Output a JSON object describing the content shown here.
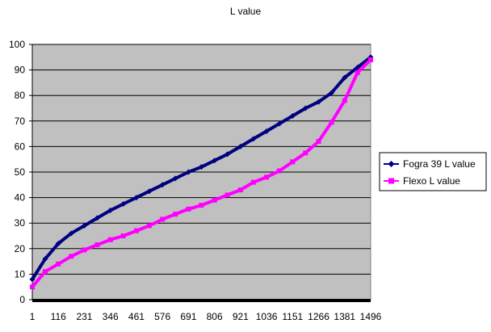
{
  "chart_data": {
    "type": "line",
    "title": "L value",
    "xlabel": "",
    "ylabel": "",
    "x_ticks": [
      "1",
      "116",
      "231",
      "346",
      "461",
      "576",
      "691",
      "806",
      "921",
      "1036",
      "1151",
      "1266",
      "1381",
      "1496"
    ],
    "xlim": [
      1,
      1496
    ],
    "ylim": [
      0,
      100
    ],
    "y_ticks": [
      "0",
      "10",
      "20",
      "30",
      "40",
      "50",
      "60",
      "70",
      "80",
      "90",
      "100"
    ],
    "grid": "horizontal",
    "plot_background": "#c0c0c0",
    "legend_position": "right",
    "x": [
      1,
      58,
      116,
      173,
      231,
      288,
      346,
      403,
      461,
      518,
      576,
      633,
      691,
      748,
      806,
      863,
      921,
      978,
      1036,
      1093,
      1151,
      1208,
      1266,
      1323,
      1381,
      1438,
      1496
    ],
    "series": [
      {
        "name": "Fogra 39 L value",
        "color": "#000080",
        "marker": "diamond",
        "values": [
          8,
          16,
          22,
          26,
          29,
          32,
          35,
          37.5,
          40,
          42.5,
          45,
          47.5,
          50,
          52,
          54.5,
          57,
          60,
          63,
          66,
          69,
          72,
          75,
          77.5,
          81,
          87,
          91,
          95
        ]
      },
      {
        "name": "Flexo L value",
        "color": "#ff00ff",
        "marker": "square",
        "values": [
          5,
          11,
          14,
          17,
          19.5,
          21.5,
          23.5,
          25,
          27,
          29,
          31.5,
          33.5,
          35.5,
          37,
          39,
          41,
          43,
          46,
          48,
          50.5,
          54,
          57.5,
          62,
          69.5,
          78,
          89,
          94
        ]
      }
    ]
  }
}
